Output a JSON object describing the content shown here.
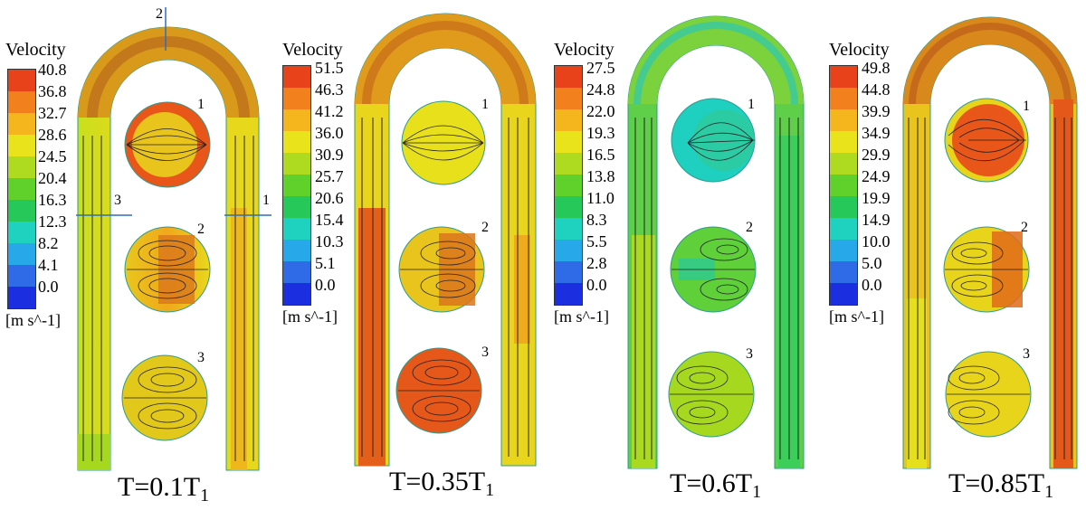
{
  "figure": {
    "panels": [
      {
        "caption_main": "T=0.1T",
        "caption_sub": "1",
        "legend": {
          "title": "Velocity",
          "unit": "[m s^-1]",
          "ticks": [
            "40.8",
            "36.8",
            "32.7",
            "28.6",
            "24.5",
            "20.4",
            "16.3",
            "12.3",
            "8.2",
            "4.1",
            "0.0"
          ]
        },
        "section_labels": [
          "1",
          "2",
          "3"
        ],
        "cut_labels": [
          "1",
          "2",
          "3"
        ]
      },
      {
        "caption_main": "T=0.35T",
        "caption_sub": "1",
        "legend": {
          "title": "Velocity",
          "unit": "[m s^-1]",
          "ticks": [
            "51.5",
            "46.3",
            "41.2",
            "36.0",
            "30.9",
            "25.7",
            "20.6",
            "15.4",
            "10.3",
            "5.1",
            "0.0"
          ]
        },
        "section_labels": [
          "1",
          "2",
          "3"
        ]
      },
      {
        "caption_main": "T=0.6T",
        "caption_sub": "1",
        "legend": {
          "title": "Velocity",
          "unit": "[m s^-1]",
          "ticks": [
            "27.5",
            "24.8",
            "22.0",
            "19.3",
            "16.5",
            "13.8",
            "11.0",
            "8.3",
            "5.5",
            "2.8",
            "0.0"
          ]
        },
        "section_labels": [
          "1",
          "2",
          "3"
        ]
      },
      {
        "caption_main": "T=0.85T",
        "caption_sub": "1",
        "legend": {
          "title": "Velocity",
          "unit": "[m s^-1]",
          "ticks": [
            "49.8",
            "44.8",
            "39.9",
            "34.9",
            "29.9",
            "24.9",
            "19.9",
            "14.9",
            "10.0",
            "5.0",
            "0.0"
          ]
        },
        "section_labels": [
          "1",
          "2",
          "3"
        ]
      }
    ],
    "colormap": [
      "#e8421a",
      "#f2811d",
      "#f5b51c",
      "#e9e31c",
      "#aedb1f",
      "#5fd12a",
      "#27c85a",
      "#1fd2c0",
      "#27a8e8",
      "#2f6be6",
      "#1c2fe0"
    ]
  }
}
